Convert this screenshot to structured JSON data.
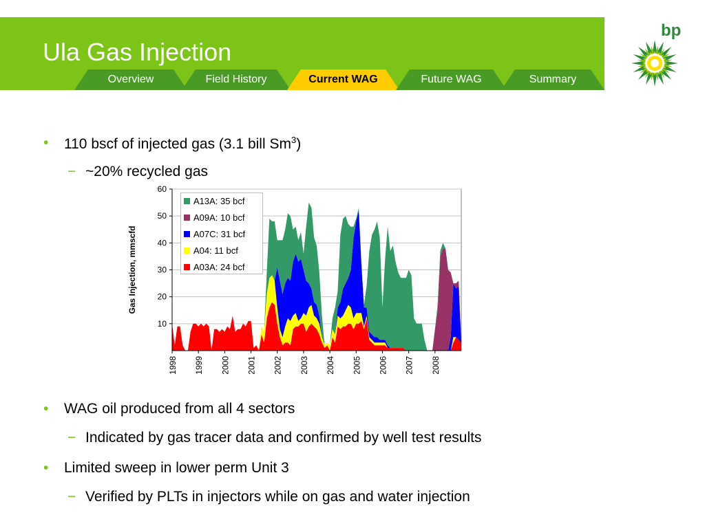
{
  "slide": {
    "title": "Ula Gas Injection",
    "tabs": [
      {
        "label": "Overview",
        "active": false
      },
      {
        "label": "Field History",
        "active": false
      },
      {
        "label": "Current WAG",
        "active": true
      },
      {
        "label": "Future WAG",
        "active": false
      },
      {
        "label": "Summary",
        "active": false
      }
    ],
    "logo_text": "bp"
  },
  "bullets": {
    "b1": {
      "text": "110 bscf of injected gas (3.1 bill Sm",
      "sup": "3",
      "after": ")"
    },
    "b1_sub": "~20% recycled gas",
    "b2": "WAG oil produced from all 4 sectors",
    "b2_sub": "Indicated by gas tracer data and confirmed by well test results",
    "b3": "Limited sweep in lower perm Unit 3",
    "b3_sub": "Verified by PLTs in injectors while on gas and water injection",
    "bullet_mark": "•",
    "dash_mark": "−"
  },
  "colors": {
    "brand_green": "#7dc418",
    "A13A": "#339966",
    "A09A": "#993366",
    "A07C": "#0000ff",
    "A04": "#ffff00",
    "A03A": "#ff0000"
  },
  "chart_data": {
    "type": "area",
    "stacked": true,
    "ylabel": "Gas Injection, mmscfd",
    "xlabel": "",
    "ylim": [
      0,
      60
    ],
    "yticks": [
      10,
      20,
      30,
      40,
      50,
      60
    ],
    "xlim": [
      1998,
      2009
    ],
    "xtick_labels": [
      "1998",
      "1999",
      "2000",
      "2001",
      "2002",
      "2003",
      "2004",
      "2005",
      "2006",
      "2007",
      "2008"
    ],
    "legend_position": "top-left",
    "grid": true,
    "x": [
      1998.0,
      1998.1,
      1998.2,
      1998.3,
      1998.4,
      1998.5,
      1998.6,
      1998.7,
      1998.8,
      1998.9,
      1999.0,
      1999.1,
      1999.2,
      1999.3,
      1999.4,
      1999.5,
      1999.6,
      1999.7,
      1999.8,
      1999.9,
      2000.0,
      2000.1,
      2000.2,
      2000.3,
      2000.4,
      2000.5,
      2000.6,
      2000.7,
      2000.8,
      2000.9,
      2001.0,
      2001.1,
      2001.2,
      2001.3,
      2001.4,
      2001.5,
      2001.6,
      2001.7,
      2001.8,
      2001.9,
      2002.0,
      2002.1,
      2002.2,
      2002.3,
      2002.4,
      2002.5,
      2002.6,
      2002.7,
      2002.8,
      2002.9,
      2003.0,
      2003.1,
      2003.2,
      2003.3,
      2003.4,
      2003.5,
      2003.6,
      2003.7,
      2003.8,
      2003.9,
      2004.0,
      2004.1,
      2004.2,
      2004.3,
      2004.4,
      2004.5,
      2004.6,
      2004.7,
      2004.8,
      2004.9,
      2005.0,
      2005.1,
      2005.2,
      2005.3,
      2005.4,
      2005.5,
      2005.6,
      2005.7,
      2005.8,
      2005.9,
      2006.0,
      2006.1,
      2006.2,
      2006.3,
      2006.4,
      2006.5,
      2006.6,
      2006.7,
      2006.8,
      2006.9,
      2007.0,
      2007.1,
      2007.2,
      2007.3,
      2007.4,
      2007.5,
      2007.6,
      2007.7,
      2007.8,
      2007.9,
      2008.0,
      2008.1,
      2008.2,
      2008.3,
      2008.4,
      2008.5,
      2008.6,
      2008.7,
      2008.8,
      2008.9,
      2009.0
    ],
    "series": [
      {
        "name": "A03A: 24 bcf",
        "values": [
          10,
          2,
          9,
          9,
          2,
          0,
          0,
          7,
          10,
          10,
          9,
          10,
          9,
          10,
          9,
          0,
          8,
          8,
          7,
          8,
          7,
          9,
          8,
          13,
          7,
          8,
          8,
          10,
          9,
          11,
          11,
          1,
          2,
          0,
          6,
          3,
          12,
          16,
          18,
          17,
          10,
          5,
          2,
          3,
          3,
          2,
          8,
          9,
          9,
          10,
          10,
          7,
          9,
          10,
          9,
          8,
          6,
          3,
          1,
          2,
          0,
          5,
          3,
          9,
          8,
          9,
          9,
          10,
          10,
          8,
          10,
          10,
          11,
          8,
          12,
          4,
          3,
          2,
          2,
          2,
          2,
          2,
          1,
          1,
          1,
          1,
          1,
          1,
          1,
          0,
          0,
          0,
          0,
          0,
          0,
          0,
          0,
          0,
          0,
          0,
          0,
          0,
          0,
          0,
          0,
          0,
          0,
          3,
          5,
          4,
          3
        ]
      },
      {
        "name": "A04: 11 bcf",
        "values": [
          0,
          0,
          0,
          0,
          0,
          0,
          0,
          0,
          0,
          0,
          0,
          0,
          0,
          0,
          0,
          0,
          0,
          0,
          0,
          0,
          0,
          0,
          0,
          0,
          0,
          0,
          0,
          0,
          0,
          0,
          0,
          0,
          0,
          0,
          3,
          4,
          9,
          11,
          10,
          9,
          6,
          3,
          3,
          6,
          9,
          9,
          5,
          5,
          2,
          2,
          4,
          6,
          7,
          7,
          4,
          4,
          4,
          2,
          1,
          1,
          2,
          3,
          3,
          4,
          4,
          4,
          6,
          7,
          6,
          4,
          4,
          4,
          3,
          1,
          1,
          1,
          1,
          1,
          1,
          1,
          1,
          1,
          0,
          0,
          0,
          0,
          0,
          0,
          0,
          0,
          0,
          0,
          0,
          0,
          0,
          0,
          0,
          0,
          0,
          0,
          0,
          0,
          0,
          0,
          0,
          0,
          0,
          2,
          0,
          0,
          0
        ]
      },
      {
        "name": "A07C: 31 bcf",
        "values": [
          0,
          0,
          0,
          0,
          0,
          0,
          0,
          0,
          0,
          0,
          0,
          0,
          0,
          0,
          0,
          0,
          0,
          0,
          0,
          0,
          0,
          0,
          0,
          0,
          0,
          0,
          0,
          0,
          0,
          0,
          0,
          0,
          0,
          0,
          0,
          0,
          0,
          0,
          0,
          0,
          15,
          18,
          16,
          16,
          15,
          15,
          20,
          22,
          22,
          22,
          16,
          13,
          9,
          6,
          5,
          5,
          3,
          0,
          0,
          0,
          0,
          0,
          0,
          3,
          6,
          10,
          10,
          10,
          14,
          30,
          34,
          38,
          18,
          7,
          3,
          2,
          2,
          2,
          2,
          1,
          1,
          1,
          1,
          0,
          0,
          0,
          0,
          0,
          0,
          0,
          0,
          0,
          0,
          0,
          0,
          0,
          0,
          0,
          0,
          0,
          0,
          0,
          0,
          0,
          0,
          0,
          5,
          20,
          18,
          20,
          0
        ]
      },
      {
        "name": "A09A: 10 bcf",
        "values": [
          0,
          0,
          0,
          0,
          0,
          0,
          0,
          0,
          0,
          0,
          0,
          0,
          0,
          0,
          0,
          0,
          0,
          0,
          0,
          0,
          0,
          0,
          0,
          0,
          0,
          0,
          0,
          0,
          0,
          0,
          0,
          0,
          0,
          0,
          0,
          0,
          0,
          0,
          0,
          0,
          0,
          0,
          0,
          0,
          0,
          0,
          0,
          0,
          0,
          0,
          0,
          0,
          0,
          0,
          0,
          0,
          0,
          0,
          0,
          0,
          0,
          0,
          0,
          0,
          0,
          0,
          0,
          0,
          0,
          0,
          0,
          0,
          0,
          0,
          0,
          0,
          0,
          0,
          0,
          0,
          0,
          0,
          0,
          0,
          0,
          0,
          0,
          0,
          0,
          0,
          0,
          0,
          0,
          0,
          0,
          0,
          0,
          0,
          0,
          0,
          8,
          15,
          35,
          38,
          38,
          30,
          24,
          0,
          2,
          2,
          0
        ]
      },
      {
        "name": "A13A: 35 bcf",
        "values": [
          0,
          0,
          0,
          0,
          0,
          0,
          0,
          0,
          0,
          0,
          0,
          0,
          0,
          0,
          0,
          0,
          0,
          0,
          0,
          0,
          0,
          0,
          0,
          0,
          0,
          0,
          0,
          0,
          0,
          0,
          0,
          0,
          0,
          0,
          0,
          0,
          8,
          22,
          20,
          22,
          10,
          15,
          20,
          20,
          24,
          24,
          12,
          10,
          8,
          10,
          6,
          20,
          30,
          30,
          24,
          22,
          16,
          8,
          0,
          0,
          0,
          4,
          10,
          6,
          25,
          26,
          25,
          20,
          16,
          4,
          1,
          1,
          1,
          1,
          8,
          30,
          37,
          40,
          43,
          38,
          12,
          30,
          44,
          36,
          38,
          32,
          28,
          26,
          26,
          27,
          30,
          28,
          12,
          10,
          10,
          10,
          4,
          0,
          0,
          0,
          0,
          2,
          2,
          2,
          0,
          0,
          0,
          0,
          0,
          0,
          0
        ]
      }
    ]
  }
}
